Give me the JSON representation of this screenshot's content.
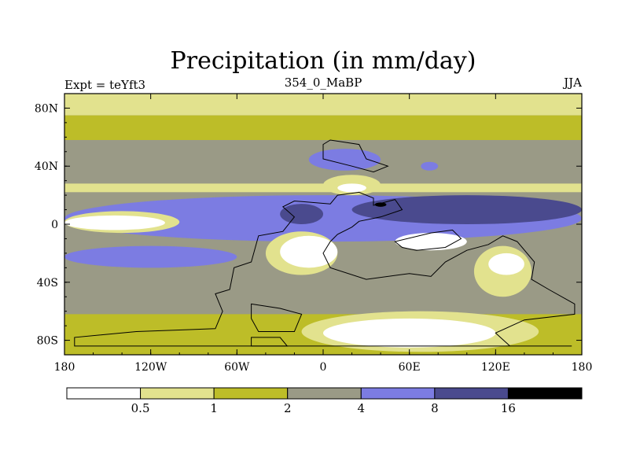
{
  "chart_data": {
    "type": "heatmap",
    "title": "Precipitation (in mm/day)",
    "subtitle_left": "Expt = teYft3",
    "subtitle_center": "354_0_MaBP",
    "subtitle_right": "JJA",
    "x_range": [
      -180,
      180
    ],
    "y_range": [
      -90,
      90
    ],
    "x_ticks": [
      {
        "value": -180,
        "label": "180"
      },
      {
        "value": -120,
        "label": "120W"
      },
      {
        "value": -60,
        "label": "60W"
      },
      {
        "value": 0,
        "label": "0"
      },
      {
        "value": 60,
        "label": "60E"
      },
      {
        "value": 120,
        "label": "120E"
      },
      {
        "value": 180,
        "label": "180"
      }
    ],
    "y_ticks": [
      {
        "value": 80,
        "label": "80N"
      },
      {
        "value": 40,
        "label": "40N"
      },
      {
        "value": 0,
        "label": "0"
      },
      {
        "value": -40,
        "label": "40S"
      },
      {
        "value": -80,
        "label": "80S"
      }
    ],
    "colorbar": {
      "levels": [
        "0.5",
        "1",
        "2",
        "4",
        "8",
        "16"
      ],
      "colors": [
        "#ffffff",
        "#e2e28e",
        "#bdbd28",
        "#9a9a86",
        "#7c7ce2",
        "#4a4a8e",
        "#000000"
      ]
    },
    "band_colors": {
      "white": "#ffffff",
      "light": "#e2e28e",
      "olive": "#bdbd28",
      "gray": "#9a9a86",
      "blue": "#7c7ce2",
      "navy": "#4a4a8e",
      "black": "#000000"
    },
    "zonal_bands": [
      {
        "lat": [
          75,
          90
        ],
        "level": "light"
      },
      {
        "lat": [
          58,
          75
        ],
        "level": "olive"
      },
      {
        "lat": [
          42,
          58
        ],
        "level": "gray"
      },
      {
        "lat": [
          28,
          42
        ],
        "level": "gray"
      },
      {
        "lat": [
          22,
          28
        ],
        "level": "light"
      },
      {
        "lat": [
          10,
          22
        ],
        "level": "gray"
      },
      {
        "lat": [
          -18,
          22
        ],
        "level": "gray"
      },
      {
        "lat": [
          -40,
          -18
        ],
        "level": "gray"
      },
      {
        "lat": [
          -62,
          -40
        ],
        "level": "gray"
      },
      {
        "lat": [
          -90,
          -62
        ],
        "level": "olive"
      }
    ],
    "regions": [
      {
        "name": "tropical-blue-band",
        "level": "blue",
        "lon": [
          -180,
          180
        ],
        "lat": [
          -12,
          20
        ]
      },
      {
        "name": "mid-lat-blue-band-south",
        "level": "blue",
        "lon": [
          -180,
          -60
        ],
        "lat": [
          -30,
          -15
        ]
      },
      {
        "name": "pacific-light-band",
        "level": "light",
        "lon": [
          -180,
          -100
        ],
        "lat": [
          -6,
          9
        ]
      },
      {
        "name": "pacific-dry-core",
        "level": "white",
        "lon": [
          -180,
          -110
        ],
        "lat": [
          -4,
          6
        ]
      },
      {
        "name": "indian-ocean-convection",
        "level": "navy",
        "lon": [
          20,
          180
        ],
        "lat": [
          0,
          20
        ]
      },
      {
        "name": "west-pangea-convection",
        "level": "navy",
        "lon": [
          -30,
          0
        ],
        "lat": [
          0,
          14
        ]
      },
      {
        "name": "north-desert-light",
        "level": "light",
        "lon": [
          0,
          40
        ],
        "lat": [
          20,
          34
        ]
      },
      {
        "name": "north-desert-white",
        "level": "white",
        "lon": [
          10,
          30
        ],
        "lat": [
          22,
          28
        ]
      },
      {
        "name": "central-pangea-light",
        "level": "light",
        "lon": [
          -40,
          10
        ],
        "lat": [
          -35,
          -5
        ]
      },
      {
        "name": "central-pangea-white",
        "level": "white",
        "lon": [
          -30,
          10
        ],
        "lat": [
          -30,
          -8
        ]
      },
      {
        "name": "east-desert-white",
        "level": "white",
        "lon": [
          50,
          100
        ],
        "lat": [
          -18,
          -6
        ]
      },
      {
        "name": "south-east-light",
        "level": "light",
        "lon": [
          105,
          145
        ],
        "lat": [
          -50,
          -15
        ]
      },
      {
        "name": "south-east-white",
        "level": "white",
        "lon": [
          115,
          140
        ],
        "lat": [
          -35,
          -20
        ]
      },
      {
        "name": "south-polar-light",
        "level": "light",
        "lon": [
          -15,
          150
        ],
        "lat": [
          -88,
          -60
        ]
      },
      {
        "name": "south-polar-white",
        "level": "white",
        "lon": [
          0,
          120
        ],
        "lat": [
          -85,
          -65
        ]
      },
      {
        "name": "north-blue-spot",
        "level": "blue",
        "lon": [
          -10,
          40
        ],
        "lat": [
          37,
          52
        ]
      },
      {
        "name": "north-east-blue-spot",
        "level": "blue",
        "lon": [
          68,
          80
        ],
        "lat": [
          37,
          43
        ]
      },
      {
        "name": "black-spot",
        "level": "black",
        "lon": [
          36,
          44
        ],
        "lat": [
          12,
          15
        ]
      }
    ]
  }
}
